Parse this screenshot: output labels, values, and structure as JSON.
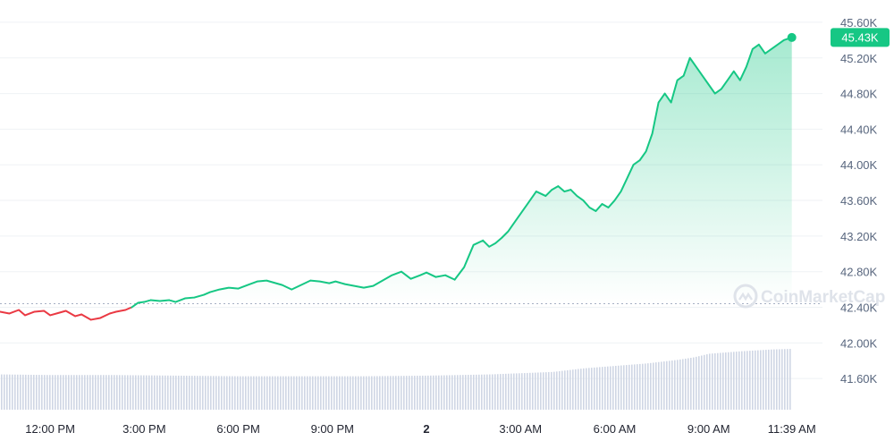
{
  "watermark": "CoinMarketCap",
  "colors": {
    "up": "#16c784",
    "down": "#ea3943",
    "volume": "#cfd6e4",
    "reference": "#a6b0c3",
    "badge": "#16c784"
  },
  "chart_data": {
    "type": "line",
    "y_ticks": [
      "45.60K",
      "45.20K",
      "44.80K",
      "44.40K",
      "44.00K",
      "43.60K",
      "43.20K",
      "42.80K",
      "42.40K",
      "42.00K",
      "41.60K"
    ],
    "y_tick_values": [
      45600,
      45200,
      44800,
      44400,
      44000,
      43600,
      43200,
      42800,
      42400,
      42000,
      41600
    ],
    "ylim": [
      41250,
      45750
    ],
    "x_ticks": [
      "12:00 PM",
      "3:00 PM",
      "6:00 PM",
      "9:00 PM",
      "2",
      "3:00 AM",
      "6:00 AM",
      "9:00 AM",
      "11:39 AM"
    ],
    "x_tick_hours": [
      0,
      3,
      6,
      9,
      12,
      15,
      18,
      21,
      23.65
    ],
    "x_tick_bold": [
      false,
      false,
      false,
      false,
      true,
      false,
      false,
      false,
      false
    ],
    "xlim_hours": [
      -1.6,
      24.4
    ],
    "reference_price": 42440,
    "current_price_label": "45.43K",
    "current_price": 45430,
    "series": [
      {
        "hours": [
          -1.6,
          -1.3,
          -1.0,
          -0.8,
          -0.5,
          -0.2,
          0.0,
          0.3,
          0.5,
          0.8,
          1.0,
          1.3,
          1.6,
          1.9,
          2.1,
          2.4,
          2.6,
          2.8,
          3.0,
          3.2,
          3.5,
          3.8,
          4.0,
          4.3,
          4.6,
          4.9,
          5.1,
          5.4,
          5.7,
          6.0,
          6.3,
          6.6,
          6.9,
          7.1,
          7.4,
          7.7,
          8.0,
          8.3,
          8.6,
          8.9,
          9.1,
          9.4,
          9.7,
          10.0,
          10.3,
          10.6,
          10.9,
          11.2,
          11.5,
          11.8,
          12.0,
          12.3,
          12.6,
          12.9,
          13.2,
          13.5,
          13.8,
          14.0,
          14.2,
          14.4,
          14.6,
          14.9,
          15.2,
          15.5,
          15.8,
          16.0,
          16.2,
          16.4,
          16.6,
          16.8,
          17.0,
          17.2,
          17.4,
          17.6,
          17.8,
          18.0,
          18.2,
          18.4,
          18.6,
          18.8,
          19.0,
          19.2,
          19.4,
          19.6,
          19.8,
          20.0,
          20.2,
          20.4,
          20.6,
          20.8,
          21.0,
          21.2,
          21.4,
          21.6,
          21.8,
          22.0,
          22.2,
          22.4,
          22.6,
          22.8,
          23.0,
          23.2,
          23.4,
          23.65
        ],
        "values": [
          42350,
          42330,
          42370,
          42310,
          42350,
          42360,
          42310,
          42340,
          42360,
          42300,
          42320,
          42260,
          42280,
          42330,
          42350,
          42370,
          42400,
          42450,
          42460,
          42480,
          42470,
          42480,
          42460,
          42500,
          42510,
          42540,
          42570,
          42600,
          42620,
          42610,
          42650,
          42690,
          42700,
          42680,
          42650,
          42600,
          42650,
          42700,
          42690,
          42670,
          42690,
          42660,
          42640,
          42620,
          42640,
          42700,
          42760,
          42800,
          42720,
          42760,
          42790,
          42740,
          42760,
          42710,
          42850,
          43100,
          43150,
          43080,
          43120,
          43180,
          43250,
          43400,
          43550,
          43700,
          43650,
          43720,
          43760,
          43700,
          43720,
          43650,
          43600,
          43520,
          43480,
          43560,
          43520,
          43600,
          43700,
          43850,
          44000,
          44050,
          44150,
          44350,
          44700,
          44800,
          44700,
          44950,
          45000,
          45200,
          45100,
          45000,
          44900,
          44800,
          44850,
          44950,
          45050,
          44950,
          45100,
          45300,
          45350,
          45250,
          45300,
          45350,
          45400,
          45430
        ]
      }
    ],
    "volume_hours": [
      -1.6,
      0,
      2,
      4,
      6,
      8,
      10,
      12,
      14,
      16,
      17,
      18,
      19,
      20,
      20.5,
      21,
      22,
      23,
      23.65
    ],
    "volume_values": [
      0.58,
      0.57,
      0.57,
      0.56,
      0.55,
      0.55,
      0.55,
      0.56,
      0.58,
      0.62,
      0.68,
      0.72,
      0.76,
      0.82,
      0.86,
      0.92,
      0.96,
      0.99,
      1.0
    ]
  }
}
